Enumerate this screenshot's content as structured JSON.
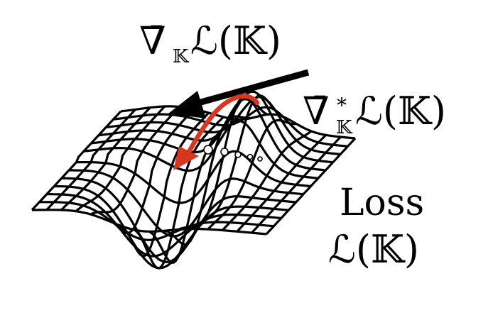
{
  "labels": {
    "euclidean_gradient": {
      "nabla": "∇̄",
      "subscript": "𝕂",
      "body": "ℒ(𝕂)"
    },
    "riemannian_gradient": {
      "nabla": "∇̄",
      "superscript": "*",
      "subscript": "𝕂",
      "body": "ℒ(𝕂)"
    },
    "loss": {
      "line1": "Loss",
      "line2": "ℒ(𝕂)"
    }
  },
  "colors": {
    "background": "#ffffff",
    "mesh": "#000000",
    "euclidean_arrow": "#000000",
    "riemannian_arrow": "#d9361f"
  }
}
